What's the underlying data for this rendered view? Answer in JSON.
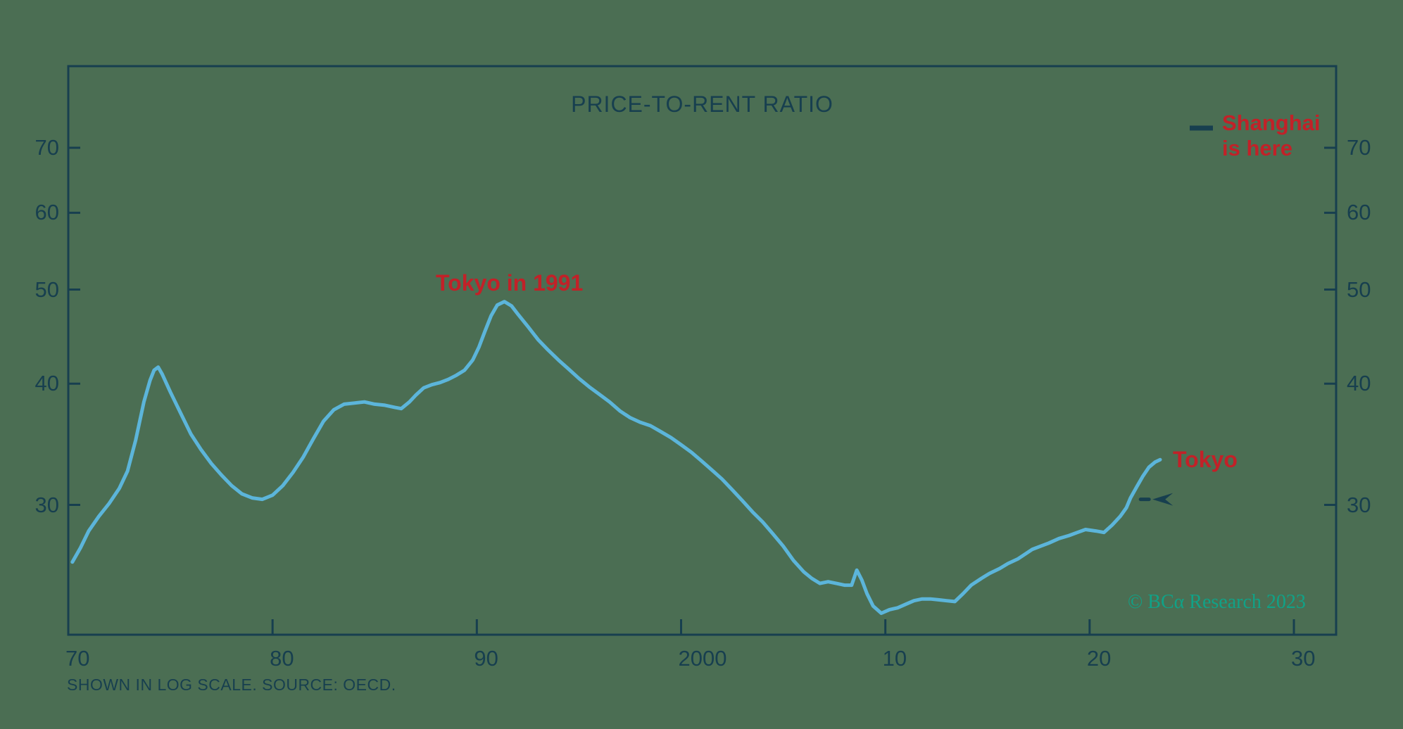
{
  "chart": {
    "title": "PRICE-TO-RENT RATIO",
    "footnote": "SHOWN IN LOG SCALE. SOURCE: OECD.",
    "watermark": "© BCα Research 2023",
    "annotations": {
      "tokyo_peak": "Tokyo in 1991",
      "shanghai_line1": "Shanghai",
      "shanghai_line2": "is here",
      "tokyo_now": "Tokyo"
    }
  },
  "colors": {
    "background": "#4b6e53",
    "axis": "#173f4f",
    "series_line": "#5cb5da",
    "annotation_red": "#c22128",
    "watermark_green": "#10a287"
  },
  "chart_data": {
    "type": "line",
    "title": "PRICE-TO-RENT RATIO",
    "xlabel": "",
    "ylabel": "",
    "y_scale": "log",
    "grid": false,
    "xlim_years": [
      1970,
      2032.1
    ],
    "ylim": [
      22,
      85
    ],
    "x_ticks": [
      {
        "label": "70",
        "year": 1970
      },
      {
        "label": "80",
        "year": 1980
      },
      {
        "label": "90",
        "year": 1990
      },
      {
        "label": "2000",
        "year": 2000
      },
      {
        "label": "10",
        "year": 2010
      },
      {
        "label": "20",
        "year": 2020
      },
      {
        "label": "30",
        "year": 2030
      }
    ],
    "y_ticks": [
      70,
      60,
      50,
      40,
      30
    ],
    "series": [
      {
        "name": "Tokyo",
        "points": [
          [
            1970.2,
            26.2
          ],
          [
            1970.6,
            27.1
          ],
          [
            1971,
            28.2
          ],
          [
            1971.5,
            29.2
          ],
          [
            1972,
            30.1
          ],
          [
            1972.5,
            31.2
          ],
          [
            1972.9,
            32.5
          ],
          [
            1973.3,
            35.0
          ],
          [
            1973.7,
            38.3
          ],
          [
            1974,
            40.3
          ],
          [
            1974.2,
            41.3
          ],
          [
            1974.4,
            41.6
          ],
          [
            1974.6,
            40.9
          ],
          [
            1975,
            39.2
          ],
          [
            1975.5,
            37.3
          ],
          [
            1976,
            35.5
          ],
          [
            1976.5,
            34.2
          ],
          [
            1977,
            33.1
          ],
          [
            1977.5,
            32.2
          ],
          [
            1978,
            31.4
          ],
          [
            1978.5,
            30.8
          ],
          [
            1979,
            30.5
          ],
          [
            1979.5,
            30.4
          ],
          [
            1980,
            30.7
          ],
          [
            1980.5,
            31.4
          ],
          [
            1981,
            32.4
          ],
          [
            1981.5,
            33.6
          ],
          [
            1982,
            35.1
          ],
          [
            1982.5,
            36.6
          ],
          [
            1983,
            37.6
          ],
          [
            1983.5,
            38.1
          ],
          [
            1984,
            38.2
          ],
          [
            1984.5,
            38.3
          ],
          [
            1985,
            38.1
          ],
          [
            1985.5,
            38.0
          ],
          [
            1986,
            37.8
          ],
          [
            1986.3,
            37.7
          ],
          [
            1986.7,
            38.3
          ],
          [
            1987,
            38.9
          ],
          [
            1987.4,
            39.6
          ],
          [
            1987.8,
            39.9
          ],
          [
            1988.2,
            40.1
          ],
          [
            1988.6,
            40.4
          ],
          [
            1989,
            40.8
          ],
          [
            1989.4,
            41.3
          ],
          [
            1989.8,
            42.3
          ],
          [
            1990.1,
            43.6
          ],
          [
            1990.4,
            45.3
          ],
          [
            1990.7,
            47.0
          ],
          [
            1991,
            48.2
          ],
          [
            1991.35,
            48.6
          ],
          [
            1991.7,
            48.1
          ],
          [
            1992,
            47.2
          ],
          [
            1992.5,
            45.8
          ],
          [
            1993,
            44.4
          ],
          [
            1993.5,
            43.3
          ],
          [
            1994,
            42.3
          ],
          [
            1994.5,
            41.4
          ],
          [
            1995,
            40.5
          ],
          [
            1995.5,
            39.7
          ],
          [
            1996,
            39.0
          ],
          [
            1996.5,
            38.3
          ],
          [
            1997,
            37.5
          ],
          [
            1997.5,
            36.9
          ],
          [
            1998,
            36.5
          ],
          [
            1998.5,
            36.2
          ],
          [
            1999,
            35.7
          ],
          [
            1999.5,
            35.2
          ],
          [
            2000,
            34.6
          ],
          [
            2000.5,
            34.0
          ],
          [
            2001,
            33.3
          ],
          [
            2001.5,
            32.6
          ],
          [
            2002,
            31.9
          ],
          [
            2002.5,
            31.1
          ],
          [
            2003,
            30.3
          ],
          [
            2003.5,
            29.5
          ],
          [
            2004,
            28.8
          ],
          [
            2004.5,
            28.0
          ],
          [
            2005,
            27.2
          ],
          [
            2005.5,
            26.3
          ],
          [
            2006,
            25.6
          ],
          [
            2006.4,
            25.2
          ],
          [
            2006.8,
            24.9
          ],
          [
            2007.2,
            25.0
          ],
          [
            2007.6,
            24.9
          ],
          [
            2008,
            24.8
          ],
          [
            2008.35,
            24.8
          ],
          [
            2008.6,
            25.7
          ],
          [
            2008.85,
            25.1
          ],
          [
            2009.1,
            24.3
          ],
          [
            2009.4,
            23.6
          ],
          [
            2009.8,
            23.2
          ],
          [
            2010.2,
            23.4
          ],
          [
            2010.6,
            23.5
          ],
          [
            2011,
            23.7
          ],
          [
            2011.4,
            23.9
          ],
          [
            2011.8,
            24.0
          ],
          [
            2012.2,
            24.0
          ],
          [
            2012.6,
            23.95
          ],
          [
            2013,
            23.9
          ],
          [
            2013.4,
            23.85
          ],
          [
            2013.8,
            24.3
          ],
          [
            2014.2,
            24.8
          ],
          [
            2014.7,
            25.2
          ],
          [
            2015.1,
            25.5
          ],
          [
            2015.6,
            25.8
          ],
          [
            2016,
            26.1
          ],
          [
            2016.5,
            26.4
          ],
          [
            2017.2,
            27.0
          ],
          [
            2017.6,
            27.2
          ],
          [
            2018,
            27.4
          ],
          [
            2018.5,
            27.7
          ],
          [
            2019,
            27.9
          ],
          [
            2019.4,
            28.1
          ],
          [
            2019.8,
            28.3
          ],
          [
            2020.3,
            28.2
          ],
          [
            2020.7,
            28.1
          ],
          [
            2021.1,
            28.6
          ],
          [
            2021.5,
            29.2
          ],
          [
            2021.8,
            29.8
          ],
          [
            2022,
            30.5
          ],
          [
            2022.3,
            31.3
          ],
          [
            2022.6,
            32.1
          ],
          [
            2022.9,
            32.8
          ],
          [
            2023.2,
            33.2
          ],
          [
            2023.45,
            33.4
          ]
        ]
      }
    ],
    "markers": [
      {
        "name": "Shanghai is here",
        "year": 2022.7,
        "value": 30.4,
        "style": "dash-with-left-arrow"
      }
    ],
    "legend": {
      "position": "top-right",
      "entries": [
        {
          "marker": "dash",
          "label": "Shanghai is here"
        }
      ]
    }
  }
}
